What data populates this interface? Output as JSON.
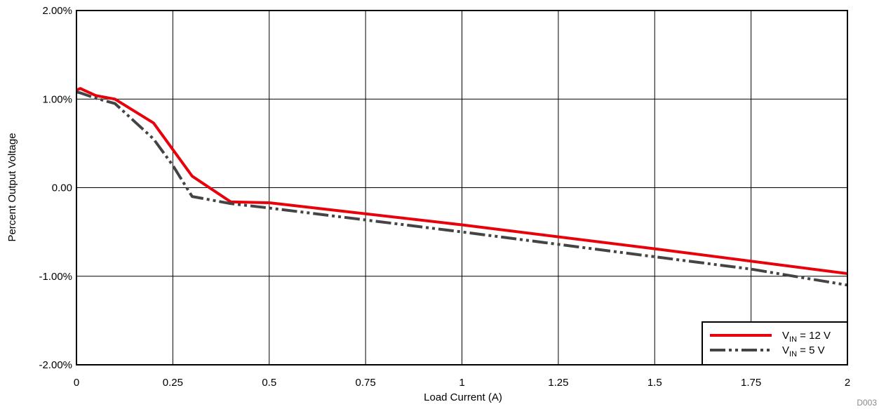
{
  "chart_data": {
    "type": "line",
    "title": "",
    "xlabel": "Load Current (A)",
    "ylabel": "Percent Output Voltage",
    "xlim": [
      0,
      2
    ],
    "ylim": [
      -2,
      2
    ],
    "x_ticks": [
      0,
      0.25,
      0.5,
      0.75,
      1,
      1.25,
      1.5,
      1.75,
      2
    ],
    "x_tick_labels": [
      "0",
      "0.25",
      "0.5",
      "0.75",
      "1",
      "1.25",
      "1.5",
      "1.75",
      "2"
    ],
    "y_ticks": [
      -2,
      -1,
      0,
      1,
      2
    ],
    "y_tick_labels": [
      "-2.00%",
      "-1.00%",
      "0.00",
      "1.00%",
      "2.00%"
    ],
    "grid": true,
    "legend_position": "bottom-right",
    "footnote": "D003",
    "series": [
      {
        "name": "V_IN = 12 V",
        "label_main": "V",
        "label_sub": "IN",
        "label_rest": " = 12 V",
        "color": "#e8000b",
        "dash": "solid",
        "points": [
          [
            0,
            1.1
          ],
          [
            0.01,
            1.12
          ],
          [
            0.025,
            1.09
          ],
          [
            0.05,
            1.04
          ],
          [
            0.1,
            1.0
          ],
          [
            0.2,
            0.73
          ],
          [
            0.3,
            0.13
          ],
          [
            0.4,
            -0.16
          ],
          [
            0.5,
            -0.17
          ],
          [
            1.0,
            -0.42
          ],
          [
            1.5,
            -0.69
          ],
          [
            2.0,
            -0.97
          ]
        ]
      },
      {
        "name": "V_IN = 5 V",
        "label_main": "V",
        "label_sub": "IN",
        "label_rest": " = 5 V",
        "color": "#444444",
        "dash": "dashdotdot",
        "points": [
          [
            0,
            1.08
          ],
          [
            0.01,
            1.07
          ],
          [
            0.05,
            1.01
          ],
          [
            0.1,
            0.95
          ],
          [
            0.2,
            0.55
          ],
          [
            0.25,
            0.25
          ],
          [
            0.3,
            -0.1
          ],
          [
            0.4,
            -0.18
          ],
          [
            0.5,
            -0.23
          ],
          [
            1.0,
            -0.5
          ],
          [
            1.5,
            -0.78
          ],
          [
            1.75,
            -0.92
          ],
          [
            2.0,
            -1.1
          ]
        ]
      }
    ]
  }
}
